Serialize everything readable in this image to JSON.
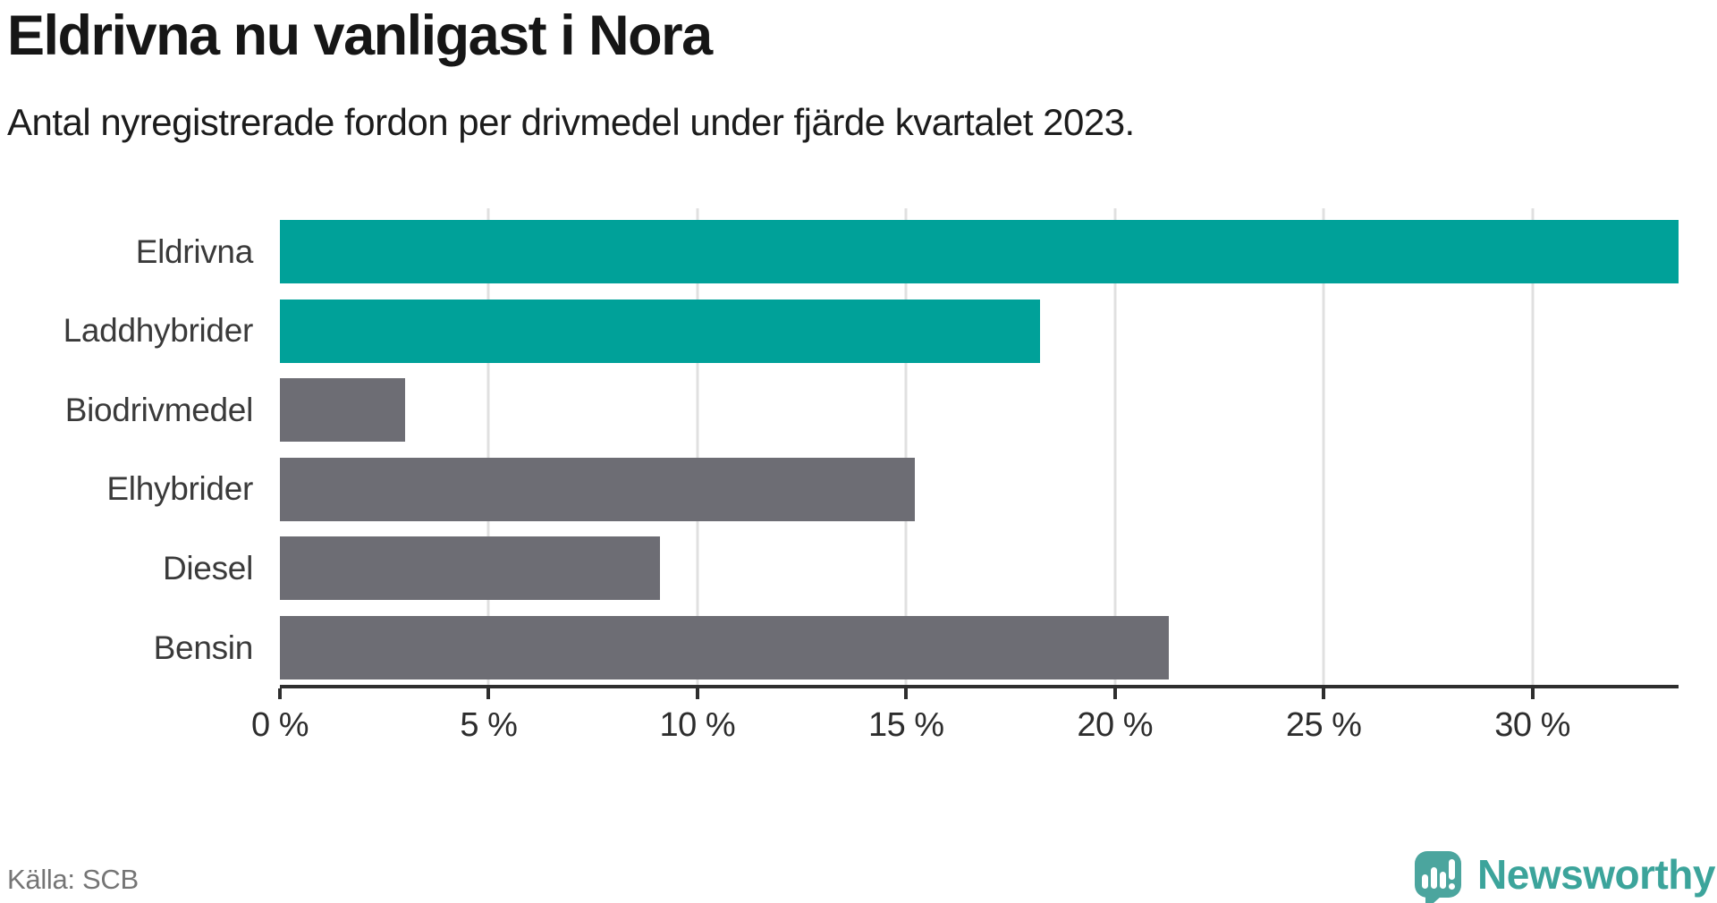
{
  "title": "Eldrivna nu vanligast i Nora",
  "subtitle": "Antal nyregistrerade fordon per drivmedel under fjärde kvartalet 2023.",
  "chart_data": {
    "type": "bar",
    "orientation": "horizontal",
    "title": "Eldrivna nu vanligast i Nora",
    "subtitle": "Antal nyregistrerade fordon per drivmedel under fjärde kvartalet 2023.",
    "categories": [
      "Eldrivna",
      "Laddhybrider",
      "Biodrivmedel",
      "Elhybrider",
      "Diesel",
      "Bensin"
    ],
    "values": [
      33.5,
      18.2,
      3.0,
      15.2,
      9.1,
      21.3
    ],
    "unit": "%",
    "xlim": [
      0,
      33.5
    ],
    "x_ticks": [
      0,
      5,
      10,
      15,
      20,
      25,
      30
    ],
    "x_tick_labels": [
      "0 %",
      "5 %",
      "10 %",
      "15 %",
      "20 %",
      "25 %",
      "30 %"
    ],
    "bar_colors": [
      "#00a199",
      "#00a199",
      "#6d6d74",
      "#6d6d74",
      "#6d6d74",
      "#6d6d74"
    ],
    "grid": "vertical-light",
    "legend": "none"
  },
  "colors": {
    "accent_teal": "#00a199",
    "neutral_gray": "#6d6d74",
    "gridline": "#e0e0e0",
    "axis": "#2e2e2e",
    "logo_teal": "#4ba59e",
    "logo_text_teal": "#3ca49b"
  },
  "footer": {
    "source": "Källa: SCB",
    "brand_name": "Newsworthy"
  },
  "icons": {
    "brand_logo": "newsworthy-speech-bubble-bar-chart-icon"
  }
}
